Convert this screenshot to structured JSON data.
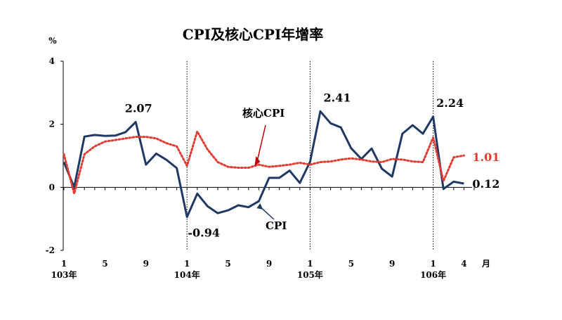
{
  "chart_data": {
    "type": "line",
    "title": "CPI及核心CPI年增率",
    "ylabel": "%",
    "xlabel_unit": "月",
    "ylim": [
      -2,
      4
    ],
    "yticks": [
      "4",
      "2",
      "0",
      "-2"
    ],
    "xtick_months": [
      "1",
      "5",
      "9",
      "1",
      "5",
      "9",
      "1",
      "5",
      "9",
      "1",
      "4"
    ],
    "year_labels": [
      "103年",
      "104年",
      "105年",
      "106年"
    ],
    "x_start": "103年1月",
    "x_end": "106年4月",
    "series": [
      {
        "name": "CPI",
        "color": "#1f3864",
        "style": "solid",
        "values": [
          0.8,
          0.0,
          1.61,
          1.66,
          1.63,
          1.64,
          1.75,
          2.07,
          0.72,
          1.07,
          0.87,
          0.61,
          -0.94,
          -0.2,
          -0.6,
          -0.82,
          -0.73,
          -0.57,
          -0.63,
          -0.44,
          0.3,
          0.3,
          0.53,
          0.14,
          0.81,
          2.41,
          2.03,
          1.9,
          1.24,
          0.9,
          1.23,
          0.59,
          0.34,
          1.7,
          1.97,
          1.7,
          2.24,
          -0.05,
          0.18,
          0.12
        ]
      },
      {
        "name": "核心CPI",
        "color": "#e03c31",
        "style": "dotted",
        "values": [
          1.05,
          -0.2,
          1.05,
          1.3,
          1.45,
          1.5,
          1.55,
          1.6,
          1.6,
          1.55,
          1.4,
          1.3,
          0.68,
          1.77,
          1.2,
          0.8,
          0.65,
          0.62,
          0.62,
          0.72,
          0.65,
          0.68,
          0.72,
          0.78,
          0.72,
          0.8,
          0.82,
          0.88,
          0.92,
          0.88,
          0.82,
          0.8,
          0.9,
          0.88,
          0.82,
          0.8,
          1.58,
          0.2,
          0.95,
          1.01
        ]
      }
    ],
    "annotations": [
      {
        "text": "2.07",
        "index": 7,
        "series": 0,
        "color": "#000000"
      },
      {
        "text": "-0.94",
        "index": 12,
        "series": 0,
        "color": "#000000"
      },
      {
        "text": "2.41",
        "index": 25,
        "series": 0,
        "color": "#000000"
      },
      {
        "text": "2.24",
        "index": 36,
        "series": 0,
        "color": "#000000"
      },
      {
        "text": "0.12",
        "index": 39,
        "series": 0,
        "color": "#000000"
      },
      {
        "text": "1.01",
        "index": 39,
        "series": 1,
        "color": "#e03c31"
      }
    ],
    "series_callouts": [
      {
        "text": "核心CPI",
        "series": 1,
        "index": 19
      },
      {
        "text": "CPI",
        "series": 0,
        "index": 19
      }
    ],
    "year_dividers_at_index": [
      12,
      24,
      36
    ]
  }
}
